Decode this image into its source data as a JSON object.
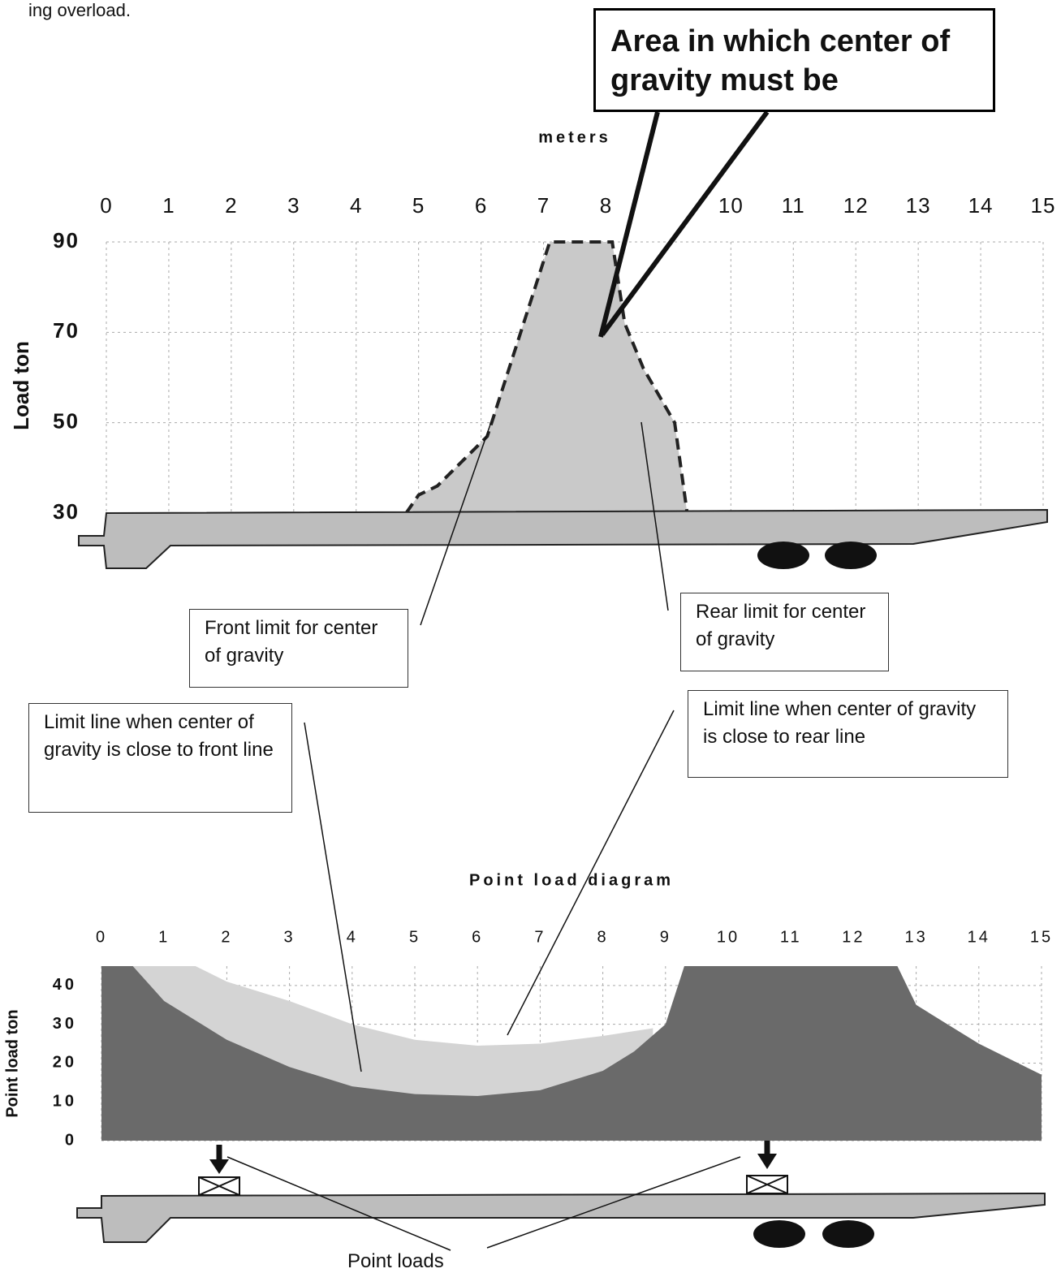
{
  "header": {
    "text": "ing overload."
  },
  "chart_data": [
    {
      "type": "area",
      "title": "meters",
      "y_label": "Load ton",
      "xlim": [
        0,
        15
      ],
      "xticks": [
        0,
        1,
        2,
        3,
        4,
        5,
        6,
        7,
        8,
        10,
        11,
        12,
        13,
        14,
        15
      ],
      "ylim": [
        30,
        90
      ],
      "yticks": [
        30,
        50,
        70,
        90
      ],
      "grid": true,
      "series": [
        {
          "color": "#c9c9c9",
          "x": [
            4.8,
            5.0,
            5.3,
            6.1,
            7.1,
            8.1,
            8.3,
            8.6,
            9.1,
            9.3
          ],
          "values": [
            30,
            34,
            36,
            47,
            90,
            90,
            72,
            62,
            50,
            30
          ]
        }
      ],
      "annotations": [
        "Area in which center of gravity must be",
        "Front limit for center of gravity",
        "Rear limit for center of gravity",
        "Limit line when center of gravity is close to front line",
        "Limit line when center of gravity is close to rear line"
      ]
    },
    {
      "type": "area",
      "title": "Point load diagram",
      "y_label": "Point load ton",
      "xlim": [
        0,
        15
      ],
      "xticks": [
        0,
        1,
        2,
        3,
        4,
        5,
        6,
        7,
        8,
        9,
        10,
        11,
        12,
        13,
        14,
        15
      ],
      "ylim": [
        0,
        45
      ],
      "yticks": [
        0,
        10,
        20,
        30,
        40
      ],
      "grid": true,
      "series": [
        {
          "color": "#d4d4d4",
          "x": [
            0.5,
            1.5,
            2,
            3,
            4,
            5,
            6,
            7,
            8,
            8.8
          ],
          "values": [
            45,
            45,
            41,
            36,
            30,
            26,
            24.5,
            25,
            27,
            29
          ]
        },
        {
          "color": "#6a6a6a",
          "x": [
            0,
            0.5,
            1,
            2,
            3,
            4,
            5,
            6,
            7,
            8,
            8.5,
            9,
            9.3,
            12.7,
            13,
            14,
            15
          ],
          "values": [
            45,
            45,
            36,
            26,
            19,
            14,
            12,
            11.5,
            13,
            18,
            23,
            30,
            45,
            45,
            35,
            25,
            17
          ]
        }
      ],
      "annotations": [
        "Point loads"
      ]
    }
  ]
}
